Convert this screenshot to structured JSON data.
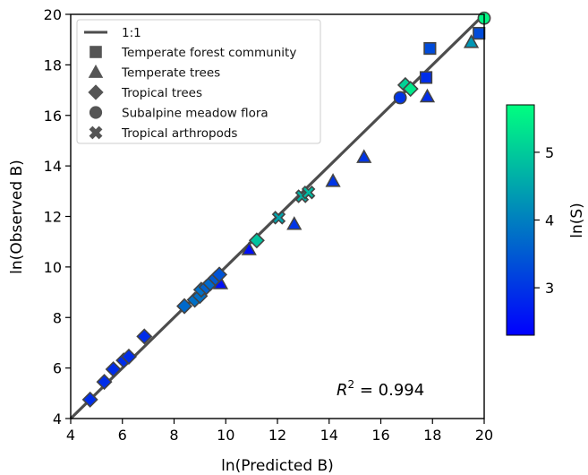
{
  "chart_data": {
    "type": "scatter",
    "xlabel": "ln(Predicted B)",
    "ylabel": "ln(Observed B)",
    "xlim": [
      4,
      20
    ],
    "ylim": [
      4,
      20
    ],
    "xticks": [
      4,
      6,
      8,
      10,
      12,
      14,
      16,
      18,
      20
    ],
    "yticks": [
      4,
      6,
      8,
      10,
      12,
      14,
      16,
      18,
      20
    ],
    "grid": false,
    "legend_position": "top-left",
    "one_to_one_label": "1:1",
    "annotation": {
      "prefix": "R",
      "superscript": "2",
      "equals": " = 0.994"
    },
    "colorbar": {
      "label": "ln(S)",
      "min": 2.3,
      "max": 5.7,
      "ticks": [
        3,
        4,
        5
      ],
      "colors": [
        "#0000ff",
        "#00ff80"
      ]
    },
    "series": [
      {
        "name": "Temperate forest community",
        "marker": "square",
        "points": [
          {
            "x": 17.75,
            "y": 17.5,
            "c": 2.9
          },
          {
            "x": 17.9,
            "y": 18.65,
            "c": 3.3
          },
          {
            "x": 19.8,
            "y": 19.25,
            "c": 3.3
          }
        ]
      },
      {
        "name": "Temperate trees",
        "marker": "triangle",
        "points": [
          {
            "x": 9.8,
            "y": 9.35,
            "c": 2.5
          },
          {
            "x": 10.9,
            "y": 10.7,
            "c": 2.5
          },
          {
            "x": 12.65,
            "y": 11.7,
            "c": 3.0
          },
          {
            "x": 14.15,
            "y": 13.4,
            "c": 3.0
          },
          {
            "x": 15.35,
            "y": 14.35,
            "c": 3.0
          },
          {
            "x": 17.8,
            "y": 16.75,
            "c": 2.9
          },
          {
            "x": 19.5,
            "y": 18.9,
            "c": 4.3
          }
        ]
      },
      {
        "name": "Tropical trees",
        "marker": "diamond",
        "points": [
          {
            "x": 4.75,
            "y": 4.75,
            "c": 2.9
          },
          {
            "x": 5.3,
            "y": 5.45,
            "c": 2.9
          },
          {
            "x": 5.65,
            "y": 5.95,
            "c": 2.9
          },
          {
            "x": 6.05,
            "y": 6.3,
            "c": 2.9
          },
          {
            "x": 6.25,
            "y": 6.45,
            "c": 2.9
          },
          {
            "x": 6.85,
            "y": 7.25,
            "c": 2.9
          },
          {
            "x": 8.4,
            "y": 8.45,
            "c": 3.7
          },
          {
            "x": 8.8,
            "y": 8.7,
            "c": 3.8
          },
          {
            "x": 9.0,
            "y": 8.85,
            "c": 3.8
          },
          {
            "x": 9.05,
            "y": 9.1,
            "c": 3.8
          },
          {
            "x": 9.25,
            "y": 9.2,
            "c": 3.6
          },
          {
            "x": 9.4,
            "y": 9.35,
            "c": 3.7
          },
          {
            "x": 9.6,
            "y": 9.55,
            "c": 3.5
          },
          {
            "x": 9.75,
            "y": 9.7,
            "c": 3.4
          },
          {
            "x": 11.2,
            "y": 11.05,
            "c": 4.9
          },
          {
            "x": 16.95,
            "y": 17.2,
            "c": 5.1
          },
          {
            "x": 17.15,
            "y": 17.05,
            "c": 5.4
          }
        ]
      },
      {
        "name": "Subalpine meadow flora",
        "marker": "circle",
        "points": [
          {
            "x": 16.75,
            "y": 16.7,
            "c": 3.0
          },
          {
            "x": 20.0,
            "y": 19.85,
            "c": 5.6
          }
        ]
      },
      {
        "name": "Tropical arthropods",
        "marker": "cross",
        "points": [
          {
            "x": 12.05,
            "y": 11.95,
            "c": 4.5
          },
          {
            "x": 12.95,
            "y": 12.8,
            "c": 4.7
          },
          {
            "x": 13.2,
            "y": 12.95,
            "c": 4.8
          }
        ]
      }
    ]
  }
}
